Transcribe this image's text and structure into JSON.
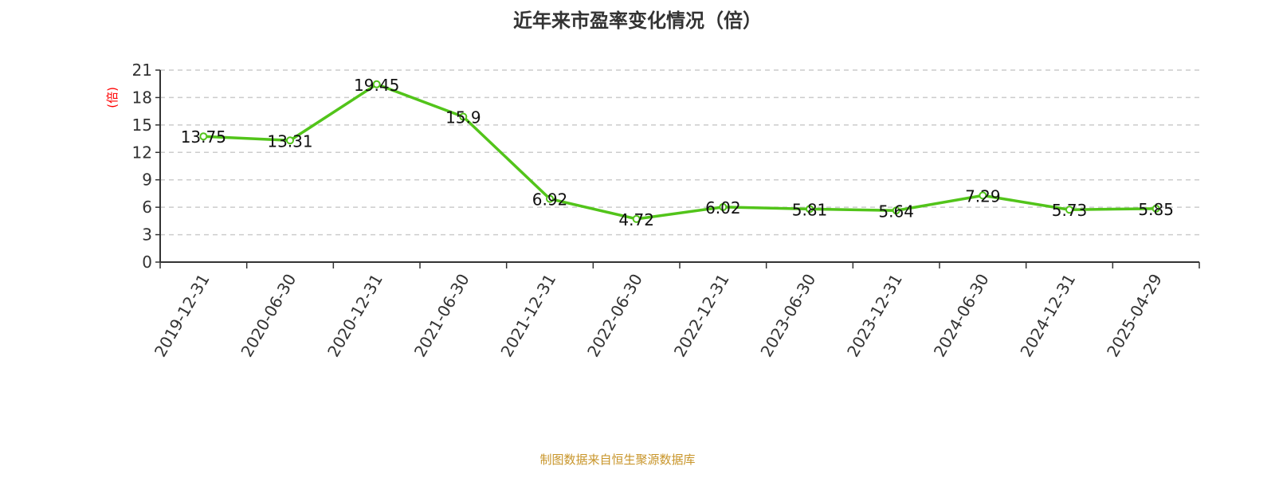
{
  "chart_data": {
    "type": "line",
    "title": "近年来市盈率变化情况（倍）",
    "ylabel": "(倍)",
    "xlabel": "",
    "categories": [
      "2019-12-31",
      "2020-06-30",
      "2020-12-31",
      "2021-06-30",
      "2021-12-31",
      "2022-06-30",
      "2022-12-31",
      "2023-06-30",
      "2023-12-31",
      "2024-06-30",
      "2024-12-31",
      "2025-04-29"
    ],
    "values": [
      13.75,
      13.31,
      19.45,
      15.9,
      6.92,
      4.72,
      6.02,
      5.81,
      5.64,
      7.29,
      5.73,
      5.85
    ],
    "data_labels": [
      "13.75",
      "13.31",
      "19.45",
      "15.9",
      "6.92",
      "4.72",
      "6.02",
      "5.81",
      "5.64",
      "7.29",
      "5.73",
      "5.85"
    ],
    "ylim": [
      0,
      21
    ],
    "yticks": [
      0,
      3,
      6,
      9,
      12,
      15,
      18,
      21
    ],
    "grid": true,
    "legend": "none",
    "colors": {
      "line": "#52c41a",
      "ylabel": "#ff0000",
      "source": "#c8952a"
    }
  },
  "footer": {
    "source": "制图数据来自恒生聚源数据库"
  }
}
